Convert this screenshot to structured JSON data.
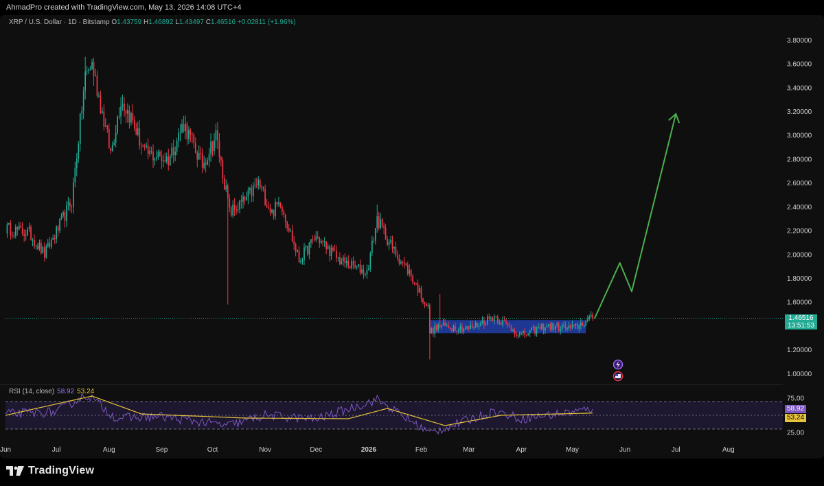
{
  "header": {
    "created_by": "AhmadPro created with TradingView.com, May 13, 2026 14:08 UTC+4"
  },
  "legend": {
    "symbol": "XRP / U.S. Dollar · 1D · Bitstamp",
    "open_label": "O",
    "open": "1.43759",
    "high_label": "H",
    "high": "1.46892",
    "low_label": "L",
    "low": "1.43497",
    "close_label": "C",
    "close": "1.46516",
    "change": "+0.02811 (+1.96%)"
  },
  "rsi_legend": {
    "label": "RSI (14, close)",
    "rsi": "58.92",
    "ma": "53.24"
  },
  "last_price": {
    "price": "1.46516",
    "countdown": "13:51:53"
  },
  "footer": {
    "brand": "TradingView"
  },
  "colors": {
    "up": "#22ab94",
    "down": "#f23645",
    "projection": "#4caf50",
    "zone": "#1f3a9a",
    "rsi": "#7e57c2",
    "rsi_ma": "#e8c43a",
    "rsi_band": "#2a1f4a"
  },
  "icons": [
    "lightning-icon",
    "flag-icon",
    "tradingview-logo-icon"
  ],
  "chart_data": [
    {
      "type": "candlestick",
      "title": "",
      "y_ticks": [
        "1.00000",
        "1.20000",
        "1.40000",
        "1.60000",
        "1.80000",
        "2.00000",
        "2.20000",
        "2.40000",
        "2.60000",
        "2.80000",
        "3.00000",
        "3.20000",
        "3.40000",
        "3.60000",
        "3.80000"
      ],
      "ylim": [
        0.95,
        3.86
      ],
      "x_ticks": [
        "Jun",
        "Jul",
        "Aug",
        "Sep",
        "Oct",
        "Nov",
        "Dec",
        "2026",
        "Feb",
        "Mar",
        "Apr",
        "May",
        "Jun",
        "Jul",
        "Aug"
      ],
      "xlim": [
        "2025-06-01",
        "2026-08-31"
      ],
      "grid": false,
      "key_points": [
        {
          "date": "2025-06-01",
          "close": 2.22
        },
        {
          "date": "2025-06-15",
          "close": 2.18
        },
        {
          "date": "2025-06-24",
          "close": 2.0
        },
        {
          "date": "2025-07-01",
          "close": 2.19
        },
        {
          "date": "2025-07-10",
          "close": 2.45
        },
        {
          "date": "2025-07-18",
          "close": 3.5
        },
        {
          "date": "2025-07-22",
          "close": 3.6
        },
        {
          "date": "2025-08-02",
          "close": 2.85
        },
        {
          "date": "2025-08-08",
          "close": 3.3
        },
        {
          "date": "2025-08-14",
          "close": 3.15
        },
        {
          "date": "2025-08-22",
          "close": 2.85
        },
        {
          "date": "2025-09-05",
          "close": 2.8
        },
        {
          "date": "2025-09-14",
          "close": 3.1
        },
        {
          "date": "2025-09-25",
          "close": 2.75
        },
        {
          "date": "2025-10-03",
          "close": 3.0
        },
        {
          "date": "2025-10-10",
          "close": 2.45
        },
        {
          "date": "2025-10-11",
          "close": 2.35
        },
        {
          "date": "2025-10-20",
          "close": 2.45
        },
        {
          "date": "2025-10-28",
          "close": 2.6
        },
        {
          "date": "2025-11-05",
          "close": 2.35
        },
        {
          "date": "2025-11-10",
          "close": 2.45
        },
        {
          "date": "2025-11-21",
          "close": 1.95
        },
        {
          "date": "2025-12-01",
          "close": 2.15
        },
        {
          "date": "2025-12-15",
          "close": 1.95
        },
        {
          "date": "2025-12-31",
          "close": 1.85
        },
        {
          "date": "2026-01-06",
          "close": 2.3
        },
        {
          "date": "2026-01-15",
          "close": 2.05
        },
        {
          "date": "2026-01-25",
          "close": 1.85
        },
        {
          "date": "2026-02-05",
          "close": 1.55
        },
        {
          "date": "2026-02-06",
          "close": 1.35
        },
        {
          "date": "2026-02-12",
          "close": 1.4
        },
        {
          "date": "2026-03-01",
          "close": 1.38
        },
        {
          "date": "2026-03-16",
          "close": 1.48
        },
        {
          "date": "2026-04-01",
          "close": 1.32
        },
        {
          "date": "2026-04-15",
          "close": 1.4
        },
        {
          "date": "2026-05-01",
          "close": 1.38
        },
        {
          "date": "2026-05-13",
          "close": 1.46516
        }
      ],
      "extreme_wicks": [
        {
          "date": "2025-07-18",
          "high": 3.66
        },
        {
          "date": "2025-10-10",
          "low": 1.58
        },
        {
          "date": "2026-02-06",
          "low": 1.12
        },
        {
          "date": "2026-01-06",
          "high": 2.42
        },
        {
          "date": "2026-02-12",
          "high": 1.67
        }
      ],
      "consolidation_zone": {
        "from": "2026-02-06",
        "to": "2026-05-09",
        "low": 1.34,
        "high": 1.45
      },
      "projection_path": [
        {
          "date": "2026-05-14",
          "price": 1.46
        },
        {
          "date": "2026-05-29",
          "price": 1.93
        },
        {
          "date": "2026-06-05",
          "price": 1.69
        },
        {
          "date": "2026-07-01",
          "price": 3.18
        }
      ],
      "last_price": 1.46516
    },
    {
      "type": "line",
      "title": "RSI (14, close)",
      "y_ticks": [
        "25.00",
        "75.00"
      ],
      "ylim": [
        20,
        88
      ],
      "bands": [
        30,
        50,
        70
      ],
      "series": [
        {
          "name": "RSI",
          "values_at_dates": [
            {
              "date": "2025-06-01",
              "v": 52
            },
            {
              "date": "2025-07-01",
              "v": 55
            },
            {
              "date": "2025-07-15",
              "v": 75
            },
            {
              "date": "2025-07-20",
              "v": 79
            },
            {
              "date": "2025-08-05",
              "v": 46
            },
            {
              "date": "2025-09-01",
              "v": 48
            },
            {
              "date": "2025-10-10",
              "v": 35
            },
            {
              "date": "2025-11-01",
              "v": 50
            },
            {
              "date": "2025-12-01",
              "v": 44
            },
            {
              "date": "2026-01-06",
              "v": 73
            },
            {
              "date": "2026-02-06",
              "v": 24
            },
            {
              "date": "2026-03-16",
              "v": 56
            },
            {
              "date": "2026-04-01",
              "v": 45
            },
            {
              "date": "2026-05-01",
              "v": 55
            },
            {
              "date": "2026-05-13",
              "v": 58.92
            }
          ]
        },
        {
          "name": "RSI-based MA",
          "values_at_dates": [
            {
              "date": "2025-06-01",
              "v": 50
            },
            {
              "date": "2025-07-22",
              "v": 78
            },
            {
              "date": "2025-08-20",
              "v": 52
            },
            {
              "date": "2025-10-20",
              "v": 46
            },
            {
              "date": "2025-12-20",
              "v": 45
            },
            {
              "date": "2026-01-12",
              "v": 60
            },
            {
              "date": "2026-02-15",
              "v": 35
            },
            {
              "date": "2026-03-20",
              "v": 50
            },
            {
              "date": "2026-05-13",
              "v": 53.24
            }
          ]
        }
      ]
    }
  ]
}
